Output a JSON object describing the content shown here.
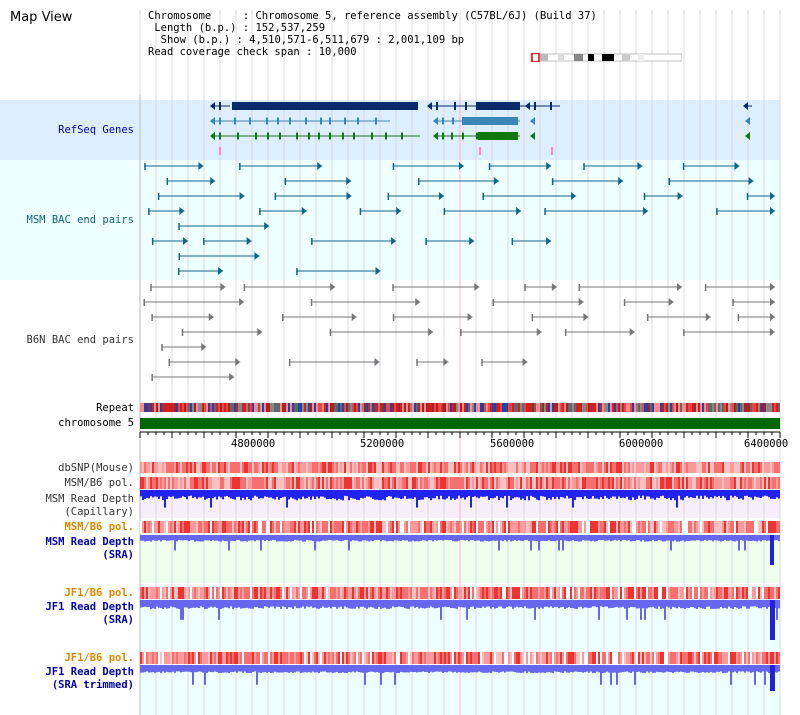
{
  "title": "Map View",
  "info": {
    "chromosome_key": "Chromosome",
    "chromosome_val": "Chromosome 5, reference assembly (C57BL/6J) (Build 37)",
    "length_key": "Length (b.p.)",
    "length_val": "152,537,259",
    "show_key": "Show (b.p.)",
    "show_val": "4,510,571-6,511,679 : 2,001,109 bp",
    "coverage_key": "Read coverage check span",
    "coverage_val": "10,000"
  },
  "tracks": {
    "refseq": "RefSeq Genes",
    "msm_bac": "MSM BAC end pairs",
    "b6n_bac": "B6N BAC end pairs",
    "repeat": "Repeat",
    "chromosome": "chromosome 5",
    "dbsnp": "dbSNP(Mouse)",
    "msm_b6_pol_1": "MSM/B6 pol.",
    "msm_depth_cap_1": "MSM Read Depth",
    "msm_depth_cap_2": "(Capillary)",
    "msm_b6_pol_2": "MSM/B6 pol.",
    "msm_depth_sra_1": "MSM Read Depth",
    "msm_depth_sra_2": "(SRA)",
    "jf1_b6_pol_1": "JF1/B6 pol.",
    "jf1_depth_sra_1": "JF1 Read Depth",
    "jf1_depth_sra_2": "(SRA)",
    "jf1_b6_pol_2": "JF1/B6 pol.",
    "jf1_depth_trim_1": "JF1 Read Depth",
    "jf1_depth_trim_2": "(SRA trimmed)"
  },
  "axis": {
    "ticks": [
      "4800000",
      "5200000",
      "5600000",
      "6000000",
      "6400000"
    ]
  },
  "colors": {
    "refseq_bg": "#ddeeff",
    "msm_bg": "#eeffff",
    "b6n_bg": "#ffffff",
    "chromosome_bar": "#006600",
    "gene_dark": "#0a2a6a",
    "gene_mid": "#3a86b4",
    "gene_green": "#117711",
    "msm_pair": "#116688",
    "b6n_pair": "#777777",
    "capillary_depth": "#2222ee",
    "sra_depth": "#6666ee",
    "label_blue": "#0000aa",
    "label_teal": "#116677",
    "label_orange": "#dd8800",
    "label_gray": "#333333"
  }
}
